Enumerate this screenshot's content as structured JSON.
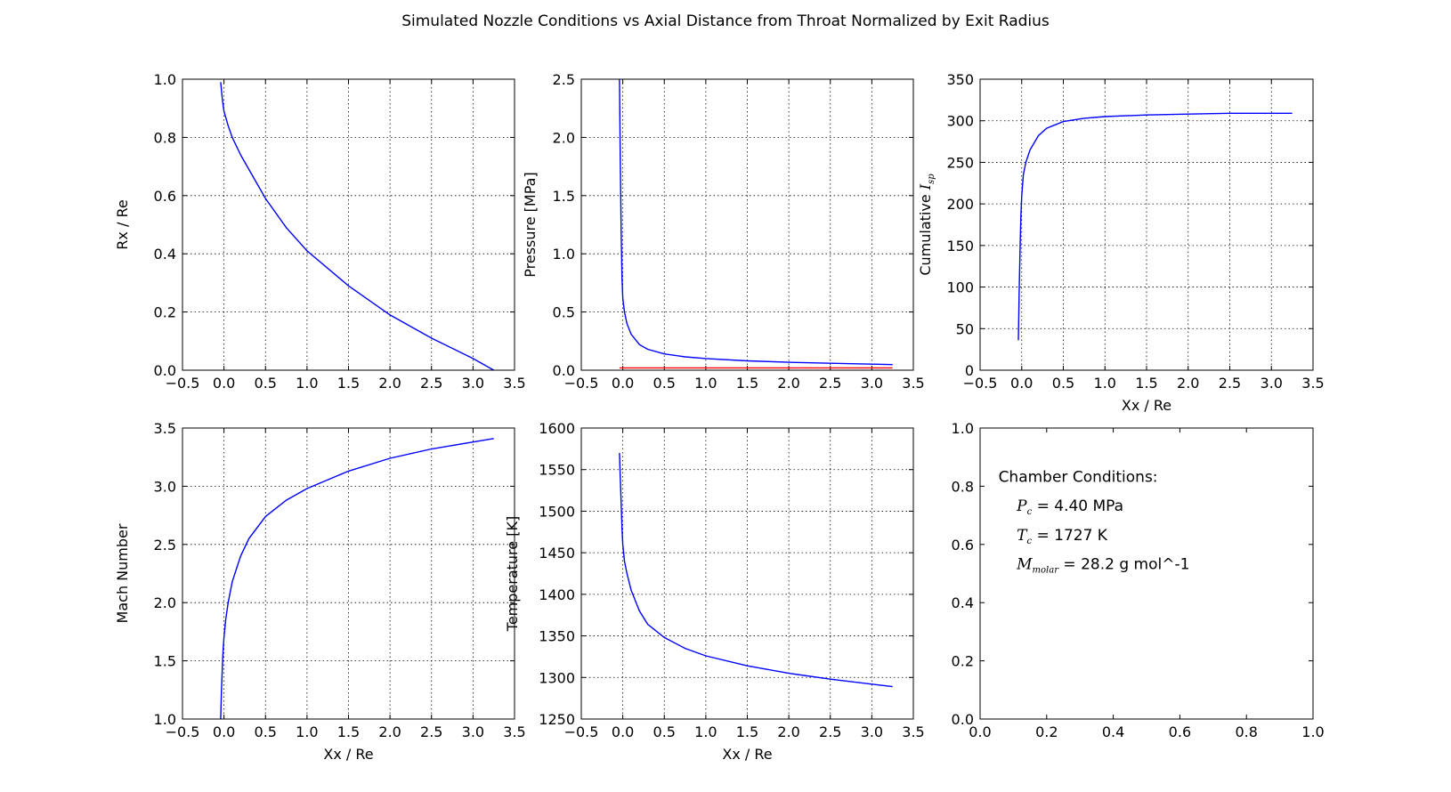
{
  "figure": {
    "title": "Simulated Nozzle Conditions vs Axial Distance from Throat Normalized by Exit Radius"
  },
  "chart_data": [
    {
      "type": "line",
      "ylabel": "Rx / Re",
      "xlabel": "",
      "xlim": [
        -0.5,
        3.5
      ],
      "ylim": [
        0.0,
        1.0
      ],
      "xticks": [
        "−0.5",
        "0.0",
        "0.5",
        "1.0",
        "1.5",
        "2.0",
        "2.5",
        "3.0",
        "3.5"
      ],
      "yticks": [
        "0.0",
        "0.2",
        "0.4",
        "0.6",
        "0.8",
        "1.0"
      ],
      "grid": true,
      "series": [
        {
          "color": "#0000ff",
          "x": [
            -0.04,
            -0.02,
            0.0,
            0.05,
            0.1,
            0.2,
            0.3,
            0.5,
            0.75,
            1.0,
            1.5,
            2.0,
            2.5,
            3.0,
            3.25
          ],
          "y": [
            0.99,
            0.93,
            0.89,
            0.84,
            0.8,
            0.74,
            0.69,
            0.59,
            0.49,
            0.41,
            0.29,
            0.19,
            0.11,
            0.04,
            0.0
          ]
        }
      ]
    },
    {
      "type": "line",
      "ylabel": "Pressure [MPa]",
      "xlabel": "",
      "xlim": [
        -0.5,
        3.5
      ],
      "ylim": [
        0.0,
        2.5
      ],
      "xticks": [
        "−0.5",
        "0.0",
        "0.5",
        "1.0",
        "1.5",
        "2.0",
        "2.5",
        "3.0",
        "3.5"
      ],
      "yticks": [
        "0.0",
        "0.5",
        "1.0",
        "1.5",
        "2.0",
        "2.5"
      ],
      "grid": true,
      "series": [
        {
          "color": "#0000ff",
          "x": [
            -0.04,
            -0.03,
            -0.02,
            -0.01,
            0.0,
            0.02,
            0.05,
            0.1,
            0.2,
            0.3,
            0.5,
            0.75,
            1.0,
            1.5,
            2.0,
            2.5,
            3.0,
            3.25
          ],
          "y": [
            2.5,
            1.8,
            1.2,
            0.8,
            0.62,
            0.5,
            0.4,
            0.31,
            0.22,
            0.18,
            0.14,
            0.115,
            0.1,
            0.08,
            0.068,
            0.06,
            0.052,
            0.048
          ]
        },
        {
          "color": "#ff0000",
          "x": [
            -0.04,
            3.25
          ],
          "y": [
            0.02,
            0.02
          ]
        }
      ]
    },
    {
      "type": "line",
      "ylabel": "Cumulative I_sp",
      "xlabel": "Xx / Re",
      "xlim": [
        -0.5,
        3.5
      ],
      "ylim": [
        0,
        350
      ],
      "xticks": [
        "−0.5",
        "0.0",
        "0.5",
        "1.0",
        "1.5",
        "2.0",
        "2.5",
        "3.0",
        "3.5"
      ],
      "yticks": [
        "0",
        "50",
        "100",
        "150",
        "200",
        "250",
        "300",
        "350"
      ],
      "grid": true,
      "series": [
        {
          "color": "#0000ff",
          "x": [
            -0.04,
            -0.03,
            -0.02,
            -0.01,
            0.0,
            0.02,
            0.05,
            0.1,
            0.2,
            0.3,
            0.5,
            0.75,
            1.0,
            1.5,
            2.0,
            2.5,
            3.0,
            3.25
          ],
          "y": [
            36,
            95,
            145,
            185,
            210,
            235,
            250,
            265,
            282,
            291,
            299,
            303,
            305,
            307,
            308,
            309,
            309,
            309
          ]
        }
      ]
    },
    {
      "type": "line",
      "ylabel": "Mach Number",
      "xlabel": "Xx / Re",
      "xlim": [
        -0.5,
        3.5
      ],
      "ylim": [
        1.0,
        3.5
      ],
      "xticks": [
        "−0.5",
        "0.0",
        "0.5",
        "1.0",
        "1.5",
        "2.0",
        "2.5",
        "3.0",
        "3.5"
      ],
      "yticks": [
        "1.0",
        "1.5",
        "2.0",
        "2.5",
        "3.0",
        "3.5"
      ],
      "grid": true,
      "series": [
        {
          "color": "#0000ff",
          "x": [
            -0.04,
            -0.03,
            -0.02,
            -0.01,
            0.0,
            0.02,
            0.05,
            0.1,
            0.2,
            0.3,
            0.5,
            0.75,
            1.0,
            1.5,
            2.0,
            2.5,
            3.0,
            3.25
          ],
          "y": [
            1.0,
            1.25,
            1.45,
            1.6,
            1.7,
            1.85,
            2.0,
            2.18,
            2.4,
            2.55,
            2.74,
            2.88,
            2.98,
            3.13,
            3.24,
            3.32,
            3.38,
            3.41
          ]
        }
      ]
    },
    {
      "type": "line",
      "ylabel": "Temperature [K]",
      "xlabel": "Xx / Re",
      "xlim": [
        -0.5,
        3.5
      ],
      "ylim": [
        1250,
        1600
      ],
      "xticks": [
        "−0.5",
        "0.0",
        "0.5",
        "1.0",
        "1.5",
        "2.0",
        "2.5",
        "3.0",
        "3.5"
      ],
      "yticks": [
        "1250",
        "1300",
        "1350",
        "1400",
        "1450",
        "1500",
        "1550",
        "1600"
      ],
      "grid": true,
      "series": [
        {
          "color": "#0000ff",
          "x": [
            -0.04,
            -0.03,
            -0.02,
            -0.01,
            0.0,
            0.02,
            0.05,
            0.1,
            0.2,
            0.3,
            0.5,
            0.75,
            1.0,
            1.5,
            2.0,
            2.5,
            3.0,
            3.25
          ],
          "y": [
            1570,
            1540,
            1510,
            1480,
            1460,
            1440,
            1425,
            1405,
            1380,
            1364,
            1348,
            1335,
            1326,
            1314,
            1305,
            1298,
            1292,
            1289
          ]
        }
      ]
    },
    {
      "type": "text",
      "ylabel": "",
      "xlabel": "",
      "xlim": [
        0.0,
        1.0
      ],
      "ylim": [
        0.0,
        1.0
      ],
      "xticks": [
        "0.0",
        "0.2",
        "0.4",
        "0.6",
        "0.8",
        "1.0"
      ],
      "yticks": [
        "0.0",
        "0.2",
        "0.4",
        "0.6",
        "0.8",
        "1.0"
      ],
      "grid": false,
      "annotations": {
        "heading": "Chamber Conditions:",
        "pc_symbol": "P",
        "pc_sub": "c",
        "pc_value": "4.40 MPa",
        "tc_symbol": "T",
        "tc_sub": "c",
        "tc_value": "1727 K",
        "m_symbol": "M",
        "m_sub": "molar",
        "m_value": "28.2 g mol^-1"
      }
    }
  ]
}
